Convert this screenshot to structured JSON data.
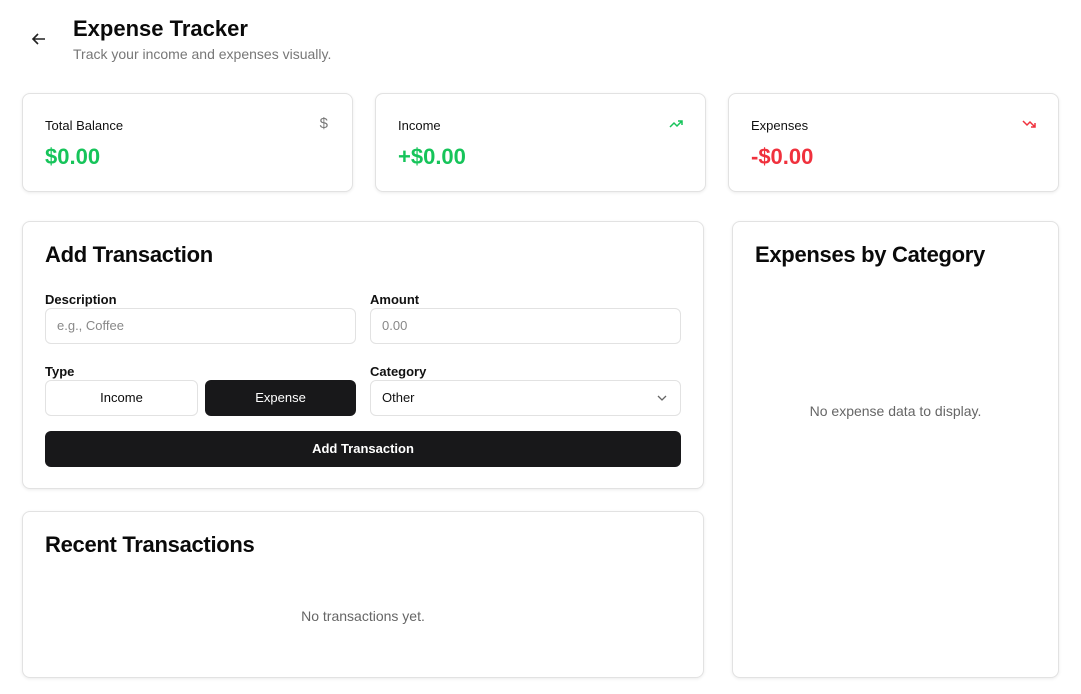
{
  "header": {
    "title": "Expense Tracker",
    "subtitle": "Track your income and expenses visually.",
    "back_icon": "arrow-left-icon"
  },
  "stats": [
    {
      "label": "Total Balance",
      "value": "$0.00",
      "icon": "dollar-icon",
      "color": "#16c45a"
    },
    {
      "label": "Income",
      "value": "+$0.00",
      "icon": "trending-up-icon",
      "color": "#16c45a"
    },
    {
      "label": "Expenses",
      "value": "-$0.00",
      "icon": "trending-down-icon",
      "color": "#f0313d"
    }
  ],
  "form": {
    "title": "Add Transaction",
    "description_label": "Description",
    "description_placeholder": "e.g., Coffee",
    "amount_label": "Amount",
    "amount_placeholder": "0.00",
    "type_label": "Type",
    "type_income": "Income",
    "type_expense": "Expense",
    "type_selected": "Expense",
    "category_label": "Category",
    "category_value": "Other",
    "submit": "Add Transaction"
  },
  "recent": {
    "title": "Recent Transactions",
    "empty": "No transactions yet."
  },
  "chart": {
    "title": "Expenses by Category",
    "empty": "No expense data to display."
  }
}
